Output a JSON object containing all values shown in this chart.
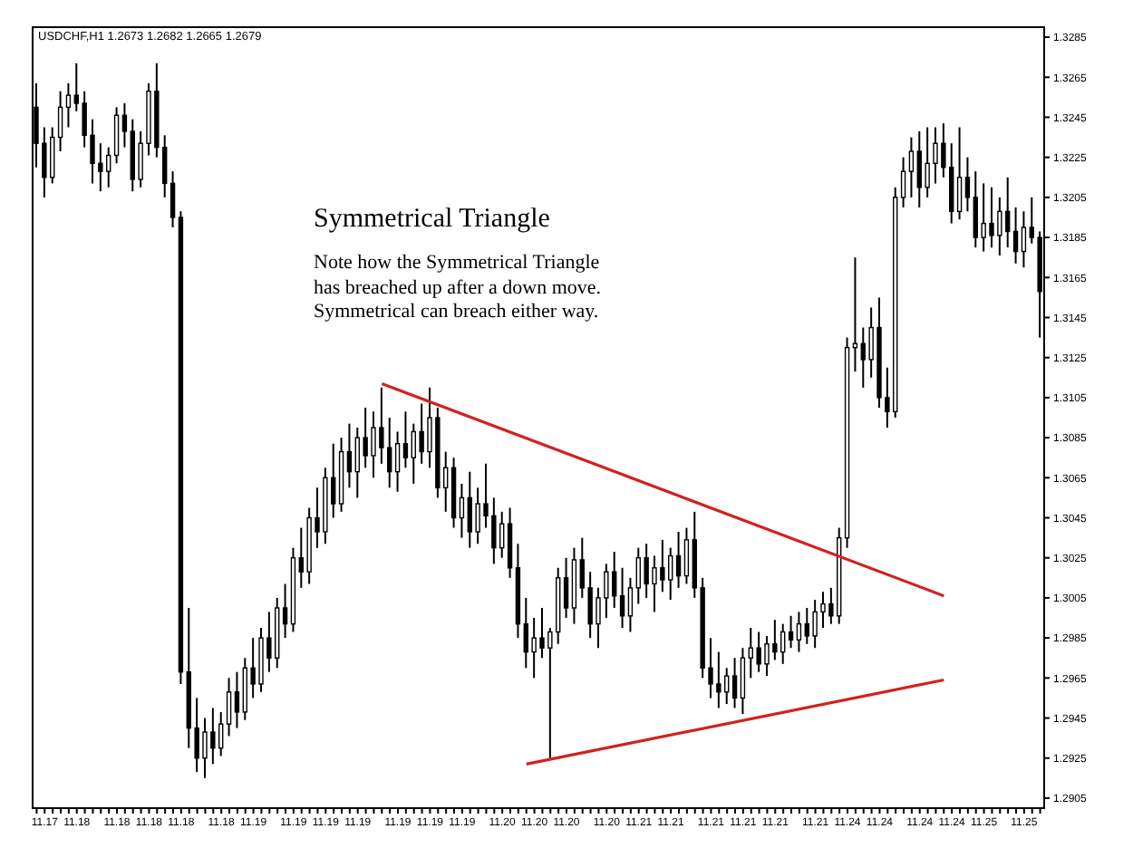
{
  "chart_data": {
    "type": "candlestick",
    "title": "Symmetrical Triangle",
    "subtitle": "USDCHF,H1  1.2673 1.2682 1.2665 1.2679",
    "annotations": [
      "Note how the Symmetrical Triangle has breached up after a down move. Symmetrical can breach either way."
    ],
    "color": "#000000",
    "categories": [
      null,
      "11.17",
      null,
      null,
      null,
      "11.18",
      null,
      null,
      null,
      null,
      "11.18",
      null,
      null,
      null,
      "11.18",
      null,
      null,
      null,
      "11.18",
      null,
      null,
      null,
      null,
      "11.18",
      null,
      null,
      null,
      "11.19",
      null,
      null,
      null,
      null,
      "11.19",
      null,
      null,
      null,
      "11.19",
      null,
      null,
      null,
      "11.19",
      null,
      null,
      null,
      null,
      "11.19",
      null,
      null,
      null,
      "11.19",
      null,
      null,
      null,
      "11.19",
      null,
      null,
      null,
      null,
      "11.20",
      null,
      null,
      null,
      "11.20",
      null,
      null,
      null,
      "11.20",
      null,
      null,
      null,
      null,
      "11.20",
      null,
      null,
      null,
      "11.21",
      null,
      null,
      null,
      "11.21",
      null,
      null,
      null,
      null,
      "11.21",
      null,
      null,
      null,
      "11.21",
      null,
      null,
      null,
      "11.21",
      null,
      null,
      null,
      null,
      "11.21",
      null,
      null,
      null,
      "11.24",
      null,
      null,
      null,
      "11.24",
      null,
      null,
      null,
      null,
      "11.24",
      null,
      null,
      null,
      "11.24",
      null,
      null,
      null,
      "11.25",
      null,
      null,
      null,
      null,
      "11.25",
      null,
      null
    ],
    "ohlc": [
      [
        1.325,
        1.3262,
        1.322,
        1.3232
      ],
      [
        1.3232,
        1.324,
        1.3205,
        1.3215
      ],
      [
        1.3215,
        1.324,
        1.3212,
        1.3235
      ],
      [
        1.3235,
        1.3258,
        1.3228,
        1.325
      ],
      [
        1.325,
        1.3262,
        1.324,
        1.3256
      ],
      [
        1.3256,
        1.3272,
        1.3248,
        1.3252
      ],
      [
        1.3252,
        1.3258,
        1.323,
        1.3236
      ],
      [
        1.3236,
        1.3244,
        1.3212,
        1.3222
      ],
      [
        1.3222,
        1.3232,
        1.3208,
        1.3218
      ],
      [
        1.3218,
        1.323,
        1.321,
        1.3226
      ],
      [
        1.3226,
        1.325,
        1.3222,
        1.3246
      ],
      [
        1.3246,
        1.3252,
        1.323,
        1.3238
      ],
      [
        1.3238,
        1.3244,
        1.3208,
        1.3214
      ],
      [
        1.3214,
        1.3238,
        1.321,
        1.3232
      ],
      [
        1.3232,
        1.3262,
        1.3226,
        1.3258
      ],
      [
        1.3258,
        1.3272,
        1.3225,
        1.323
      ],
      [
        1.323,
        1.3236,
        1.3205,
        1.3212
      ],
      [
        1.3212,
        1.3218,
        1.319,
        1.3195
      ],
      [
        1.3195,
        1.3198,
        1.2962,
        1.2968
      ],
      [
        1.2968,
        1.3,
        1.293,
        1.294
      ],
      [
        1.294,
        1.2955,
        1.2918,
        1.2925
      ],
      [
        1.2925,
        1.2945,
        1.2915,
        1.2938
      ],
      [
        1.2938,
        1.295,
        1.2922,
        1.293
      ],
      [
        1.293,
        1.2948,
        1.2926,
        1.2942
      ],
      [
        1.2942,
        1.2965,
        1.2936,
        1.2958
      ],
      [
        1.2958,
        1.2968,
        1.294,
        1.2948
      ],
      [
        1.2948,
        1.2975,
        1.2944,
        1.297
      ],
      [
        1.297,
        1.2985,
        1.2955,
        1.2962
      ],
      [
        1.2962,
        1.299,
        1.2958,
        1.2985
      ],
      [
        1.2985,
        1.2998,
        1.2968,
        1.2975
      ],
      [
        1.2975,
        1.3005,
        1.297,
        1.3
      ],
      [
        1.3,
        1.3012,
        1.2985,
        1.2992
      ],
      [
        1.2992,
        1.303,
        1.2988,
        1.3025
      ],
      [
        1.3025,
        1.304,
        1.301,
        1.3018
      ],
      [
        1.3018,
        1.305,
        1.3012,
        1.3045
      ],
      [
        1.3045,
        1.306,
        1.303,
        1.3038
      ],
      [
        1.3038,
        1.307,
        1.3032,
        1.3065
      ],
      [
        1.3065,
        1.3082,
        1.3045,
        1.3052
      ],
      [
        1.3052,
        1.3085,
        1.3048,
        1.3078
      ],
      [
        1.3078,
        1.3092,
        1.306,
        1.3068
      ],
      [
        1.3068,
        1.309,
        1.3055,
        1.3085
      ],
      [
        1.3085,
        1.31,
        1.307,
        1.3076
      ],
      [
        1.3076,
        1.3098,
        1.3065,
        1.309
      ],
      [
        1.309,
        1.311,
        1.3072,
        1.308
      ],
      [
        1.308,
        1.3095,
        1.306,
        1.3068
      ],
      [
        1.3068,
        1.3088,
        1.3058,
        1.3082
      ],
      [
        1.3082,
        1.3098,
        1.307,
        1.3075
      ],
      [
        1.3075,
        1.3092,
        1.3062,
        1.3088
      ],
      [
        1.3088,
        1.3102,
        1.3072,
        1.3078
      ],
      [
        1.3078,
        1.311,
        1.307,
        1.3095
      ],
      [
        1.3095,
        1.31,
        1.3055,
        1.306
      ],
      [
        1.306,
        1.3078,
        1.3048,
        1.307
      ],
      [
        1.307,
        1.3075,
        1.304,
        1.3045
      ],
      [
        1.3045,
        1.3062,
        1.3035,
        1.3055
      ],
      [
        1.3055,
        1.3068,
        1.303,
        1.3038
      ],
      [
        1.3038,
        1.306,
        1.3032,
        1.3052
      ],
      [
        1.3052,
        1.3072,
        1.304,
        1.3046
      ],
      [
        1.3046,
        1.3055,
        1.3022,
        1.303
      ],
      [
        1.303,
        1.3048,
        1.3025,
        1.3042
      ],
      [
        1.3042,
        1.305,
        1.3015,
        1.302
      ],
      [
        1.302,
        1.3032,
        1.2985,
        1.2992
      ],
      [
        1.2992,
        1.3005,
        1.297,
        1.2978
      ],
      [
        1.2978,
        1.2995,
        1.2965,
        1.2985
      ],
      [
        1.2985,
        1.3,
        1.2975,
        1.298
      ],
      [
        1.298,
        1.299,
        1.2925,
        1.2988
      ],
      [
        1.2988,
        1.302,
        1.2982,
        1.3015
      ],
      [
        1.3015,
        1.3025,
        1.2995,
        1.3
      ],
      [
        1.3,
        1.303,
        1.2992,
        1.3024
      ],
      [
        1.3024,
        1.3035,
        1.3005,
        1.301
      ],
      [
        1.301,
        1.3018,
        1.2985,
        1.2992
      ],
      [
        1.2992,
        1.301,
        1.298,
        1.3005
      ],
      [
        1.3005,
        1.3022,
        1.2995,
        1.3018
      ],
      [
        1.3018,
        1.3028,
        1.3,
        1.3006
      ],
      [
        1.3006,
        1.302,
        1.299,
        1.2996
      ],
      [
        1.2996,
        1.3015,
        1.2988,
        1.301
      ],
      [
        1.301,
        1.303,
        1.3002,
        1.3025
      ],
      [
        1.3025,
        1.3032,
        1.3005,
        1.3012
      ],
      [
        1.3012,
        1.3026,
        1.2998,
        1.302
      ],
      [
        1.302,
        1.3034,
        1.3008,
        1.3014
      ],
      [
        1.3014,
        1.303,
        1.3004,
        1.3026
      ],
      [
        1.3026,
        1.3038,
        1.301,
        1.3016
      ],
      [
        1.3016,
        1.304,
        1.3012,
        1.3034
      ],
      [
        1.3034,
        1.3048,
        1.3005,
        1.301
      ],
      [
        1.301,
        1.3015,
        1.2965,
        1.297
      ],
      [
        1.297,
        1.2985,
        1.2955,
        1.2962
      ],
      [
        1.2962,
        1.2978,
        1.295,
        1.2958
      ],
      [
        1.2958,
        1.297,
        1.2952,
        1.2966
      ],
      [
        1.2966,
        1.2975,
        1.295,
        1.2955
      ],
      [
        1.2955,
        1.298,
        1.2947,
        1.2975
      ],
      [
        1.2975,
        1.299,
        1.2965,
        1.298
      ],
      [
        1.298,
        1.2988,
        1.2968,
        1.2972
      ],
      [
        1.2972,
        1.2986,
        1.2966,
        1.2982
      ],
      [
        1.2982,
        1.2994,
        1.2974,
        1.2978
      ],
      [
        1.2978,
        1.2992,
        1.2972,
        1.2988
      ],
      [
        1.2988,
        1.2996,
        1.298,
        1.2984
      ],
      [
        1.2984,
        1.2998,
        1.2978,
        1.2992
      ],
      [
        1.2992,
        1.3,
        1.2982,
        1.2986
      ],
      [
        1.2986,
        1.3004,
        1.298,
        1.2998
      ],
      [
        1.2998,
        1.3008,
        1.299,
        1.3002
      ],
      [
        1.3002,
        1.301,
        1.2992,
        1.2996
      ],
      [
        1.2996,
        1.304,
        1.2992,
        1.3035
      ],
      [
        1.3035,
        1.3135,
        1.303,
        1.313
      ],
      [
        1.313,
        1.3175,
        1.3118,
        1.3132
      ],
      [
        1.3132,
        1.314,
        1.311,
        1.3124
      ],
      [
        1.3124,
        1.315,
        1.3115,
        1.314
      ],
      [
        1.314,
        1.3155,
        1.31,
        1.3105
      ],
      [
        1.3105,
        1.312,
        1.309,
        1.3098
      ],
      [
        1.3098,
        1.321,
        1.3095,
        1.3205
      ],
      [
        1.3205,
        1.3225,
        1.32,
        1.3218
      ],
      [
        1.3218,
        1.3235,
        1.3205,
        1.3228
      ],
      [
        1.3228,
        1.3238,
        1.32,
        1.321
      ],
      [
        1.321,
        1.324,
        1.3205,
        1.3222
      ],
      [
        1.3222,
        1.324,
        1.3212,
        1.3232
      ],
      [
        1.3232,
        1.3242,
        1.3215,
        1.322
      ],
      [
        1.322,
        1.3232,
        1.3192,
        1.3198
      ],
      [
        1.3198,
        1.324,
        1.3194,
        1.3215
      ],
      [
        1.3215,
        1.3225,
        1.3198,
        1.3205
      ],
      [
        1.3205,
        1.3218,
        1.318,
        1.3185
      ],
      [
        1.3185,
        1.3212,
        1.3178,
        1.3192
      ],
      [
        1.3192,
        1.321,
        1.318,
        1.3186
      ],
      [
        1.3186,
        1.3205,
        1.3176,
        1.3198
      ],
      [
        1.3198,
        1.3215,
        1.318,
        1.3188
      ],
      [
        1.3188,
        1.32,
        1.3172,
        1.3178
      ],
      [
        1.3178,
        1.3198,
        1.317,
        1.319
      ],
      [
        1.319,
        1.3205,
        1.3182,
        1.3185
      ],
      [
        1.3185,
        1.3188,
        1.3135,
        1.3158
      ]
    ],
    "series": [
      {
        "type": "line",
        "color": "#d42020",
        "values": [
          null,
          null,
          null,
          null,
          null,
          null,
          null,
          null,
          null,
          null,
          null,
          null,
          null,
          null,
          null,
          null,
          null,
          null,
          null,
          null,
          null,
          null,
          null,
          null,
          null,
          null,
          null,
          null,
          null,
          null,
          null,
          null,
          null,
          null,
          null,
          null,
          null,
          null,
          null,
          null,
          null,
          null,
          null,
          1.3112,
          null,
          null,
          null,
          null,
          null,
          null,
          null,
          null,
          null,
          null,
          null,
          null,
          null,
          null,
          null,
          null,
          null,
          null,
          null,
          null,
          null,
          null,
          null,
          null,
          null,
          null,
          null,
          null,
          null,
          null,
          null,
          null,
          null,
          null,
          null,
          null,
          null,
          null,
          null,
          null,
          null,
          null,
          null,
          null,
          null,
          null,
          null,
          null,
          null,
          null,
          null,
          null,
          null,
          null,
          null,
          null,
          null,
          null,
          null,
          null,
          null,
          null,
          null,
          null,
          null,
          null,
          null,
          null,
          null,
          1.3006,
          null,
          null,
          null,
          null,
          null,
          null,
          null,
          null,
          null,
          null,
          null,
          null
        ]
      },
      {
        "type": "line",
        "color": "#d42020",
        "values": [
          null,
          null,
          null,
          null,
          null,
          null,
          null,
          null,
          null,
          null,
          null,
          null,
          null,
          null,
          null,
          null,
          null,
          null,
          null,
          null,
          null,
          null,
          null,
          null,
          null,
          null,
          null,
          null,
          null,
          null,
          null,
          null,
          null,
          null,
          null,
          null,
          null,
          null,
          null,
          null,
          null,
          null,
          null,
          null,
          null,
          null,
          null,
          null,
          null,
          null,
          null,
          null,
          null,
          null,
          null,
          null,
          null,
          null,
          null,
          null,
          null,
          1.2922,
          null,
          null,
          null,
          null,
          null,
          null,
          null,
          null,
          null,
          null,
          null,
          null,
          null,
          null,
          null,
          null,
          null,
          null,
          null,
          null,
          null,
          null,
          null,
          null,
          null,
          null,
          null,
          null,
          null,
          null,
          null,
          null,
          null,
          null,
          null,
          null,
          null,
          null,
          null,
          null,
          null,
          null,
          null,
          null,
          null,
          null,
          null,
          null,
          null,
          null,
          null,
          1.2964,
          null,
          null,
          null,
          null,
          null,
          null,
          null,
          null,
          null,
          null,
          null,
          null
        ]
      }
    ],
    "ylim": [
      1.29,
      1.329
    ],
    "yticks": [
      1.2905,
      1.2925,
      1.2945,
      1.2965,
      1.2985,
      1.3005,
      1.3025,
      1.3045,
      1.3065,
      1.3085,
      1.3105,
      1.3125,
      1.3145,
      1.3165,
      1.3185,
      1.3205,
      1.3225,
      1.3245,
      1.3265,
      1.3285
    ],
    "grid": false,
    "legend": false,
    "marker": "none",
    "line_style": "solid"
  }
}
